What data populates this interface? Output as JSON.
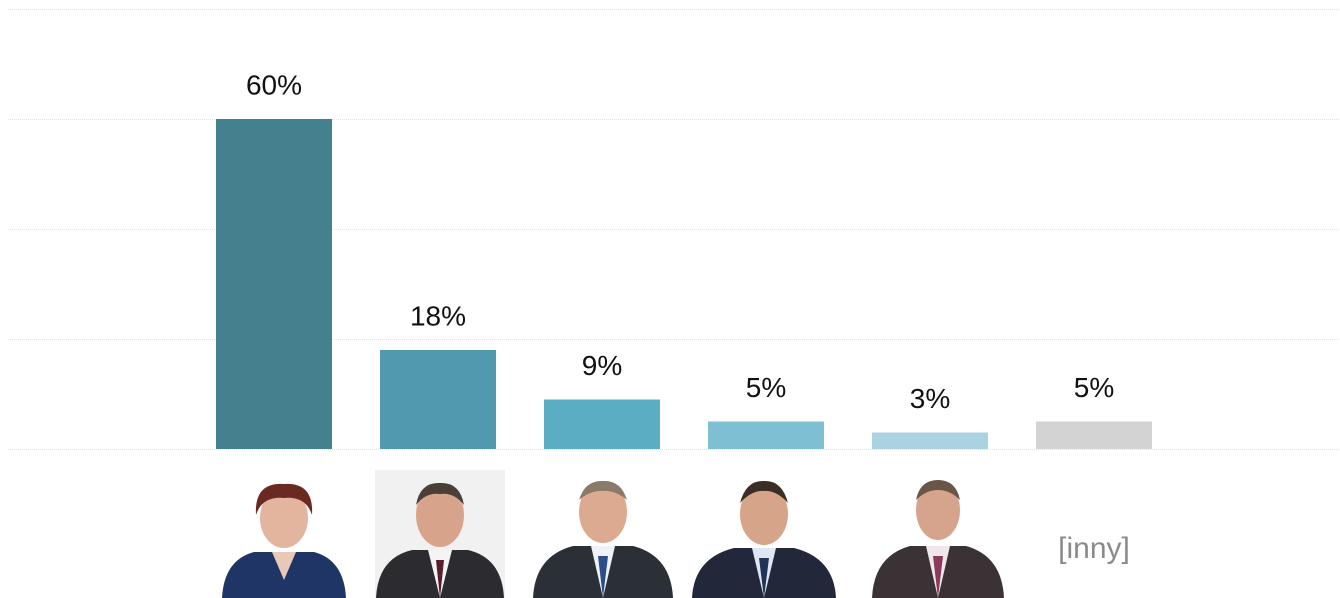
{
  "chart_data": {
    "type": "bar",
    "categories": [
      null,
      null,
      null,
      null,
      null,
      "[inny]"
    ],
    "values": [
      60,
      18,
      9,
      5,
      3,
      5
    ],
    "value_labels": [
      "60%",
      "18%",
      "9%",
      "5%",
      "3%",
      "5%"
    ],
    "colors": [
      "#44818f",
      "#5199ae",
      "#5badc4",
      "#7fbfd3",
      "#a9d3e0",
      "#d3d3d3"
    ],
    "ylim": [
      0,
      80
    ],
    "yticks": [
      0,
      20,
      40,
      60,
      80
    ],
    "grid": true
  }
}
